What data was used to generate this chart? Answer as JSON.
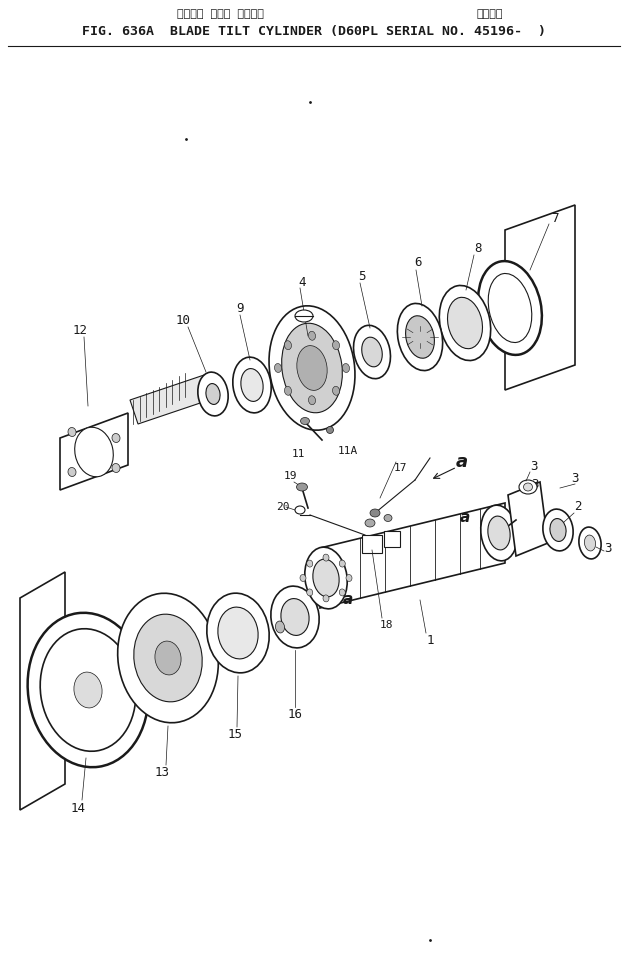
{
  "title_jp": "ブレード  チルト  シリンダ",
  "title_jp2": "適用号機",
  "title_en": "FIG. 636A  BLADE TILT CYLINDER (D60PL SERIAL NO. 45196-  )",
  "bg_color": "#ffffff",
  "line_color": "#1a1a1a",
  "fig_width": 6.28,
  "fig_height": 9.67
}
